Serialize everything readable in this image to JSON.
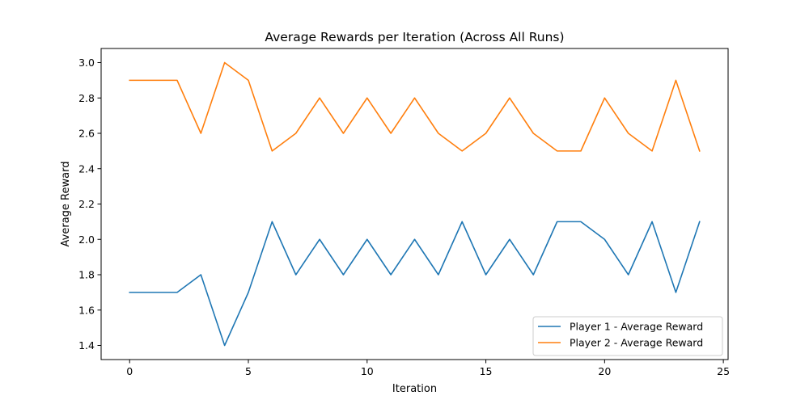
{
  "chart_data": {
    "type": "line",
    "title": "Average Rewards per Iteration (Across All Runs)",
    "xlabel": "Iteration",
    "ylabel": "Average Reward",
    "xlim": [
      -1.2,
      25.2
    ],
    "ylim": [
      1.32,
      3.08
    ],
    "xticks": [
      0,
      5,
      10,
      15,
      20,
      25
    ],
    "yticks": [
      1.4,
      1.6,
      1.8,
      2.0,
      2.2,
      2.4,
      2.6,
      2.8,
      3.0
    ],
    "ytick_labels": [
      "1.4",
      "1.6",
      "1.8",
      "2.0",
      "2.2",
      "2.4",
      "2.6",
      "2.8",
      "3.0"
    ],
    "grid": false,
    "legend_position": "lower-right",
    "x": [
      0,
      1,
      2,
      3,
      4,
      5,
      6,
      7,
      8,
      9,
      10,
      11,
      12,
      13,
      14,
      15,
      16,
      17,
      18,
      19,
      20,
      21,
      22,
      23,
      24
    ],
    "series": [
      {
        "name": "Player 1 - Average Reward",
        "color": "#1f77b4",
        "values": [
          1.7,
          1.7,
          1.7,
          1.8,
          1.4,
          1.7,
          2.1,
          1.8,
          2.0,
          1.8,
          2.0,
          1.8,
          2.0,
          1.8,
          2.1,
          1.8,
          2.0,
          1.8,
          2.1,
          2.1,
          2.0,
          1.8,
          2.1,
          1.7,
          2.1
        ]
      },
      {
        "name": "Player 2 - Average Reward",
        "color": "#ff7f0e",
        "values": [
          2.9,
          2.9,
          2.9,
          2.6,
          3.0,
          2.9,
          2.5,
          2.6,
          2.8,
          2.6,
          2.8,
          2.6,
          2.8,
          2.6,
          2.5,
          2.6,
          2.8,
          2.6,
          2.5,
          2.5,
          2.8,
          2.6,
          2.5,
          2.9,
          2.5
        ]
      }
    ]
  }
}
